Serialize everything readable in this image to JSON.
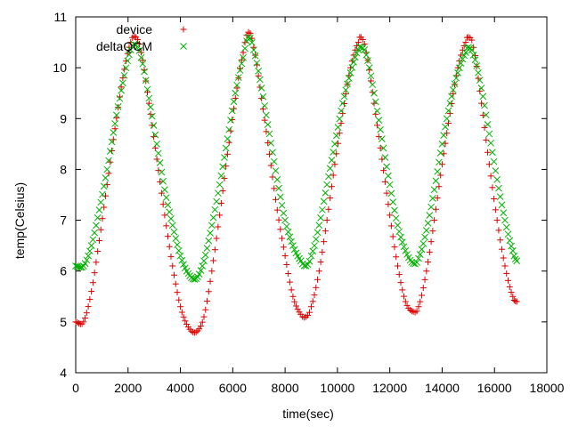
{
  "chart_data": {
    "type": "scatter",
    "xlabel": "time(sec)",
    "ylabel": "temp(Celsius)",
    "xlim": [
      0,
      18000
    ],
    "ylim": [
      4,
      11
    ],
    "xticks": [
      0,
      2000,
      4000,
      6000,
      8000,
      10000,
      12000,
      14000,
      16000,
      18000
    ],
    "yticks": [
      4,
      5,
      6,
      7,
      8,
      9,
      10,
      11
    ],
    "legend_position": "top-left",
    "grid": false,
    "series": [
      {
        "name": "device",
        "marker": "plus",
        "color": "#dd0000",
        "x": [
          0,
          300,
          600,
          900,
          1200,
          1500,
          1800,
          2100,
          2300,
          2500,
          2800,
          3100,
          3400,
          3700,
          4000,
          4300,
          4600,
          4900,
          5200,
          5500,
          5800,
          6100,
          6400,
          6600,
          6800,
          7100,
          7400,
          7700,
          8000,
          8300,
          8600,
          8800,
          9000,
          9300,
          9600,
          9900,
          10200,
          10500,
          10800,
          10900,
          11100,
          11400,
          11700,
          12000,
          12300,
          12600,
          12900,
          13100,
          13400,
          13700,
          14000,
          14300,
          14600,
          14900,
          15000,
          15200,
          15500,
          15800,
          16100,
          16400,
          16700,
          16850
        ],
        "y": [
          5.0,
          5.0,
          5.6,
          6.6,
          7.7,
          8.8,
          9.8,
          10.5,
          10.6,
          10.3,
          9.3,
          8.2,
          7.1,
          6.1,
          5.3,
          4.9,
          4.8,
          5.1,
          6.0,
          7.1,
          8.3,
          9.4,
          10.3,
          10.7,
          10.4,
          9.4,
          8.3,
          7.2,
          6.3,
          5.5,
          5.15,
          5.1,
          5.3,
          6.0,
          7.0,
          8.1,
          9.1,
          10.0,
          10.5,
          10.6,
          10.3,
          9.3,
          8.2,
          7.1,
          6.1,
          5.4,
          5.2,
          5.3,
          6.0,
          7.0,
          8.1,
          9.1,
          10.0,
          10.5,
          10.6,
          10.4,
          9.3,
          8.1,
          7.0,
          6.1,
          5.5,
          5.4
        ]
      },
      {
        "name": "deltaQCM",
        "marker": "cross",
        "color": "#00b000",
        "x": [
          0,
          300,
          600,
          900,
          1200,
          1500,
          1800,
          2100,
          2300,
          2500,
          2800,
          3100,
          3400,
          3700,
          4000,
          4300,
          4600,
          4900,
          5200,
          5500,
          5800,
          6100,
          6400,
          6600,
          6800,
          7100,
          7400,
          7700,
          8000,
          8300,
          8600,
          8800,
          9000,
          9300,
          9600,
          9900,
          10200,
          10500,
          10800,
          10900,
          11100,
          11400,
          11700,
          12000,
          12300,
          12600,
          12900,
          13100,
          13400,
          13700,
          14000,
          14300,
          14600,
          14900,
          15000,
          15200,
          15500,
          15800,
          16100,
          16400,
          16700,
          16850
        ],
        "y": [
          6.1,
          6.1,
          6.5,
          7.2,
          8.0,
          8.9,
          9.7,
          10.35,
          10.45,
          10.2,
          9.4,
          8.5,
          7.6,
          6.9,
          6.3,
          5.95,
          5.85,
          6.2,
          6.9,
          7.7,
          8.6,
          9.5,
          10.2,
          10.6,
          10.35,
          9.6,
          8.7,
          7.8,
          7.0,
          6.5,
          6.2,
          6.1,
          6.3,
          6.9,
          7.7,
          8.5,
          9.3,
          9.9,
          10.35,
          10.4,
          10.25,
          9.5,
          8.6,
          7.7,
          6.9,
          6.4,
          6.15,
          6.25,
          6.8,
          7.6,
          8.5,
          9.3,
          9.9,
          10.3,
          10.4,
          10.25,
          9.6,
          8.7,
          7.8,
          7.0,
          6.4,
          6.2
        ]
      }
    ]
  }
}
